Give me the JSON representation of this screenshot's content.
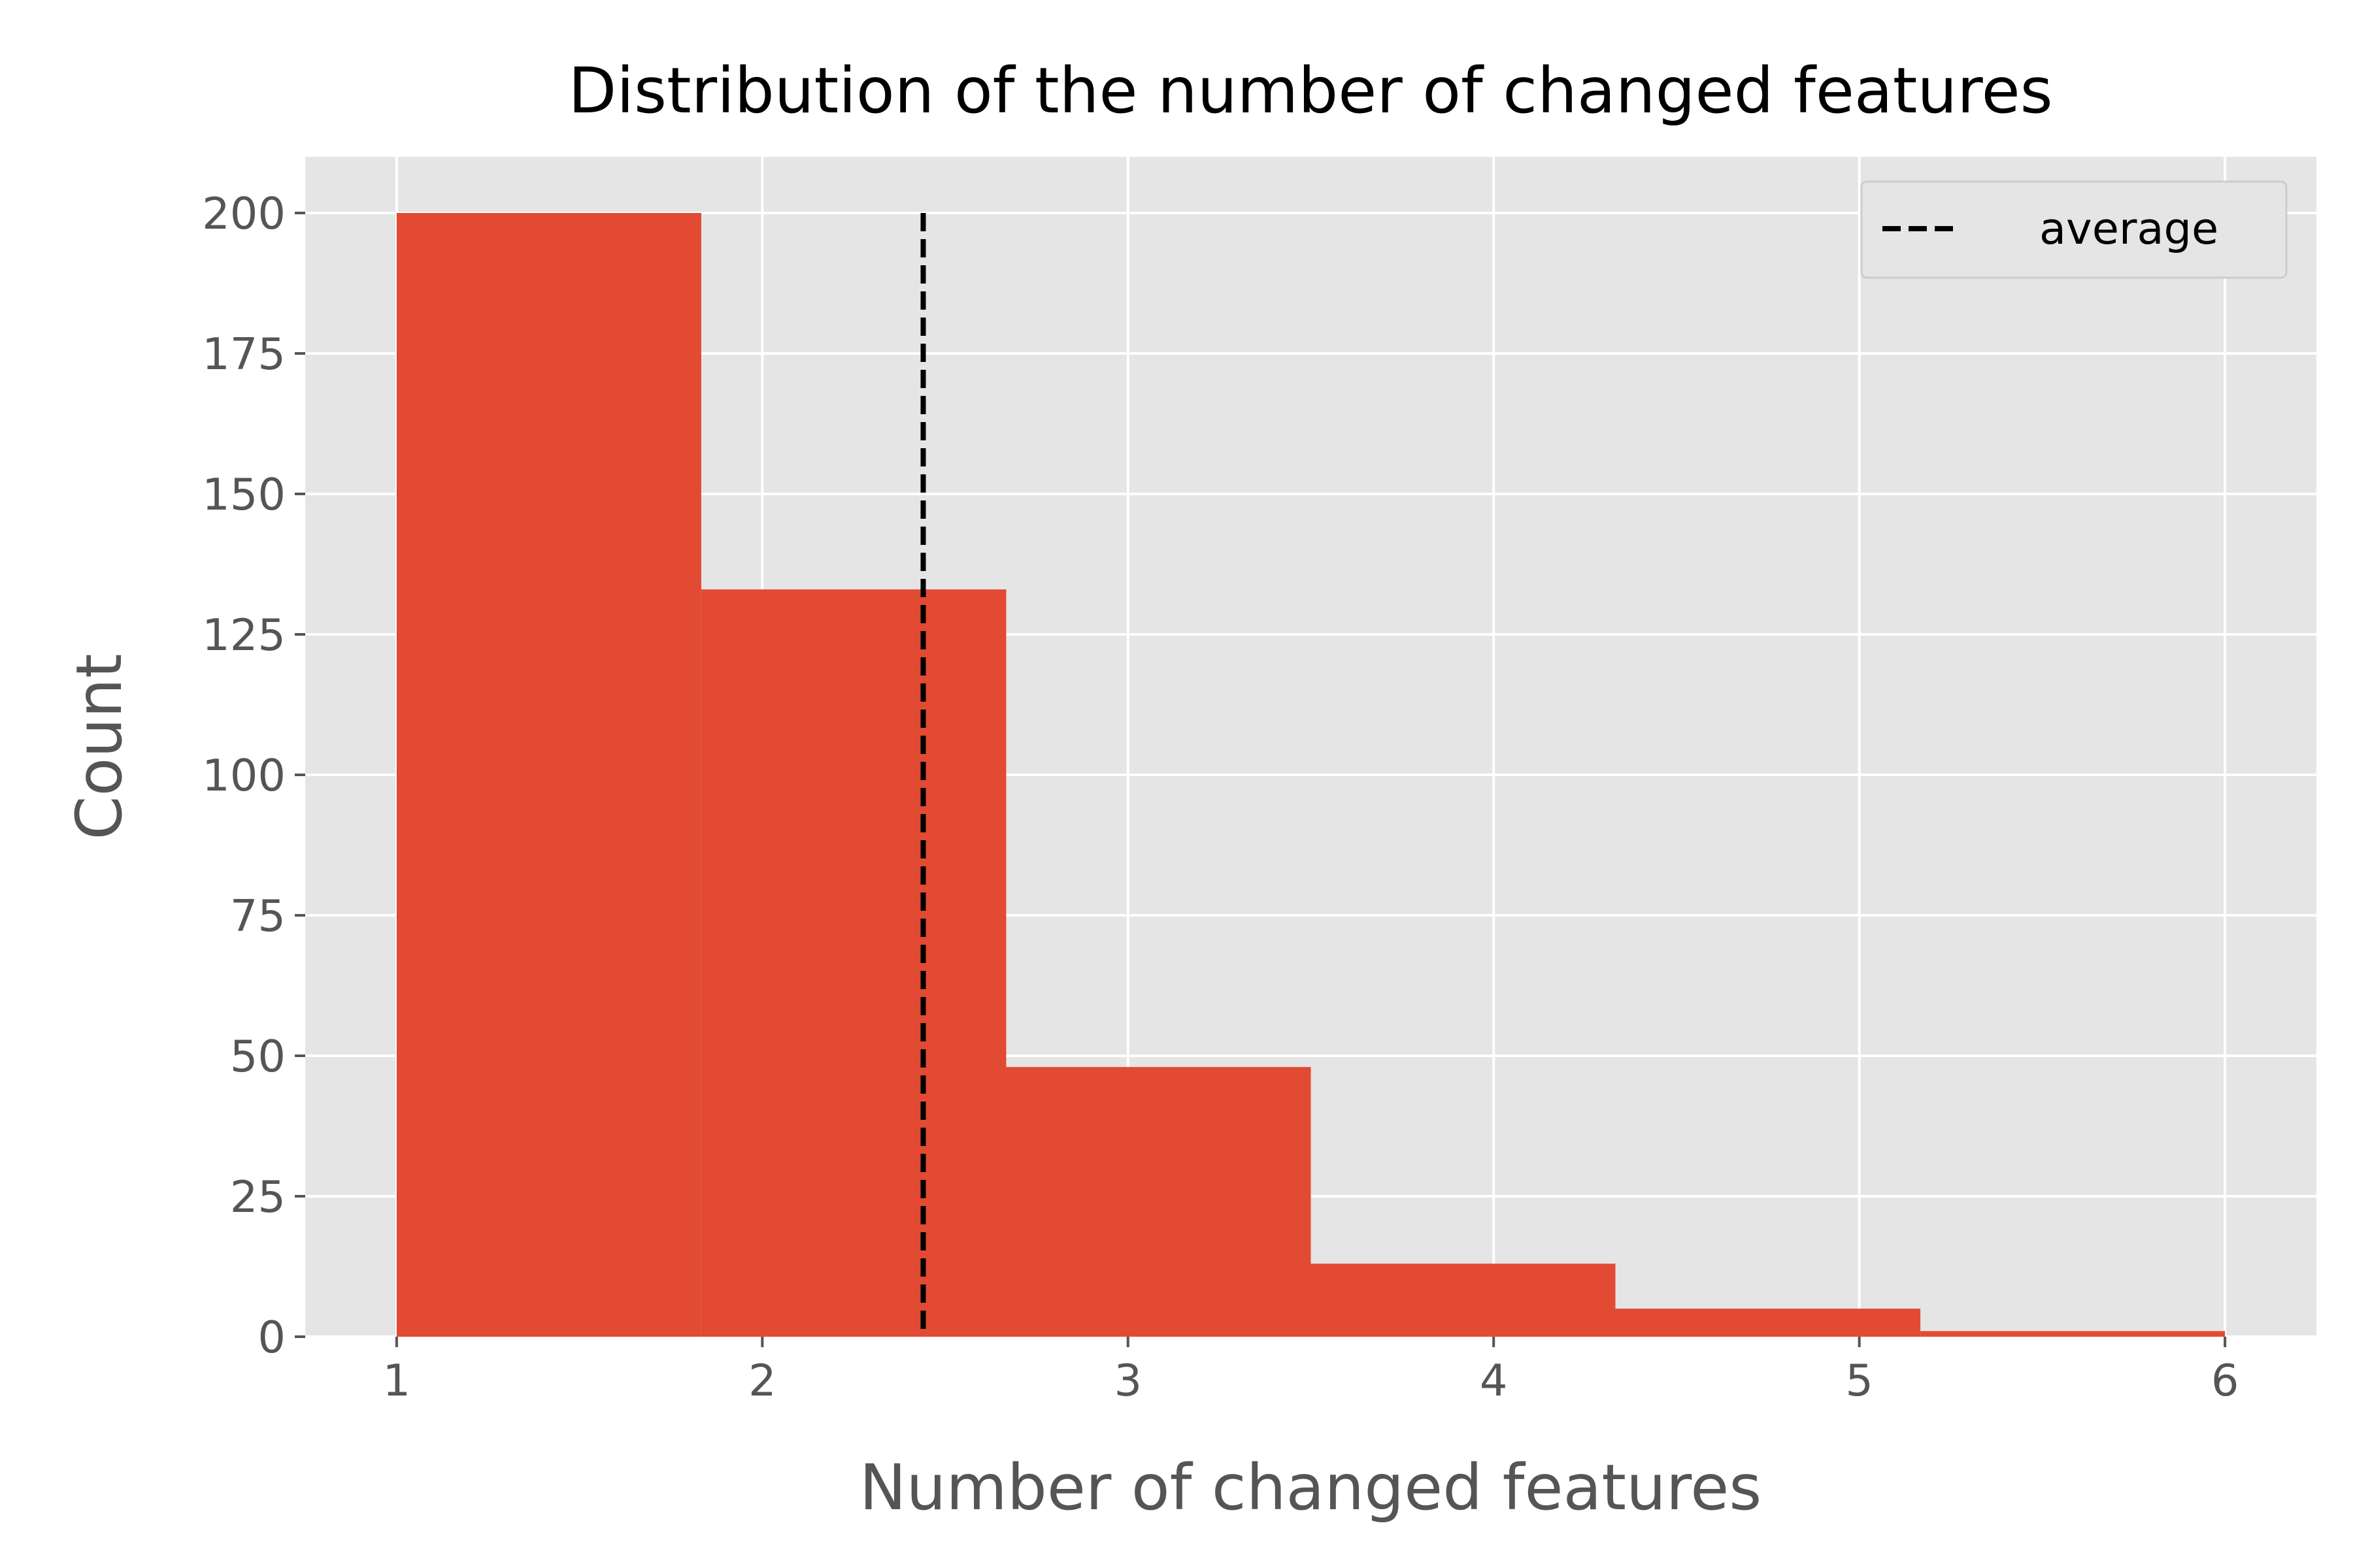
{
  "chart_data": {
    "type": "bar",
    "title": "Distribution of the number of changed features",
    "xlabel": "Number of changed features",
    "ylabel": "Count",
    "xlim": [
      0.75,
      6.25
    ],
    "ylim": [
      0,
      210
    ],
    "xticks": [
      1,
      2,
      3,
      4,
      5,
      6
    ],
    "yticks": [
      0,
      25,
      50,
      75,
      100,
      125,
      150,
      175,
      200
    ],
    "bins": [
      {
        "x0": 1.0,
        "x1": 1.833,
        "value": 200
      },
      {
        "x0": 1.833,
        "x1": 2.667,
        "value": 133
      },
      {
        "x0": 2.667,
        "x1": 3.5,
        "value": 48
      },
      {
        "x0": 3.5,
        "x1": 4.333,
        "value": 13
      },
      {
        "x0": 4.333,
        "x1": 5.167,
        "value": 5
      },
      {
        "x0": 5.167,
        "x1": 6.0,
        "value": 1
      }
    ],
    "average": {
      "label": "average",
      "x": 2.44,
      "ymax": 200
    },
    "grid": true,
    "legend_position": "top-right",
    "colors": {
      "bar": "#E24A33",
      "background": "#E5E5E5",
      "grid": "#FFFFFF",
      "average_line": "#000000"
    }
  }
}
